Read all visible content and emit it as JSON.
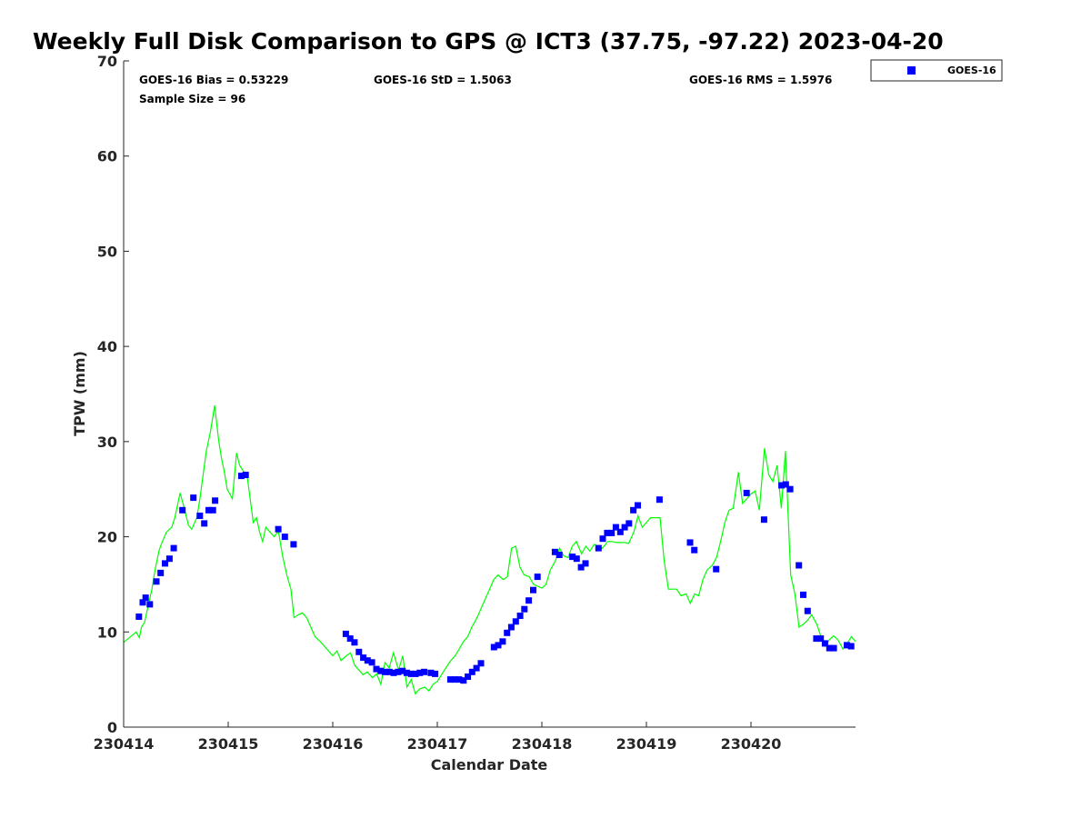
{
  "chart_data": {
    "type": "scatter",
    "title": "Weekly Full Disk Comparison to GPS @ ICT3 (37.75, -97.22) 2023-04-20",
    "xlabel": "Calendar Date",
    "ylabel": "TPW (mm)",
    "xlim": [
      0,
      7
    ],
    "ylim": [
      0,
      70
    ],
    "x_ticks": [
      0,
      1,
      2,
      3,
      4,
      5,
      6
    ],
    "x_tick_labels": [
      "230414",
      "230415",
      "230416",
      "230417",
      "230418",
      "230419",
      "230420"
    ],
    "y_ticks": [
      0,
      10,
      20,
      30,
      40,
      50,
      60,
      70
    ],
    "y_tick_labels": [
      "0",
      "10",
      "20",
      "30",
      "40",
      "50",
      "60",
      "70"
    ],
    "legend_position": "top-right (outside plot)",
    "grid": false,
    "stats": {
      "bias": "GOES-16 Bias = 0.53229",
      "std": "GOES-16 StD = 1.5063",
      "rms": "GOES-16 RMS = 1.5976",
      "sample": "Sample Size = 96"
    },
    "series": [
      {
        "name": "GOES-16",
        "kind": "markers",
        "marker": "square",
        "color": "#0000ff",
        "x": [
          0.146,
          0.183,
          0.21,
          0.25,
          0.313,
          0.354,
          0.396,
          0.438,
          0.479,
          0.563,
          0.667,
          0.729,
          0.771,
          0.813,
          0.854,
          0.875,
          1.125,
          1.167,
          1.479,
          1.542,
          1.625,
          2.125,
          2.167,
          2.208,
          2.25,
          2.292,
          2.333,
          2.375,
          2.417,
          2.458,
          2.5,
          2.542,
          2.583,
          2.625,
          2.667,
          2.708,
          2.75,
          2.792,
          2.833,
          2.875,
          2.938,
          2.979,
          3.125,
          3.167,
          3.208,
          3.25,
          3.292,
          3.333,
          3.375,
          3.417,
          3.542,
          3.583,
          3.625,
          3.667,
          3.708,
          3.75,
          3.792,
          3.833,
          3.875,
          3.917,
          3.958,
          4.125,
          4.167,
          4.292,
          4.333,
          4.375,
          4.417,
          4.542,
          4.583,
          4.625,
          4.667,
          4.708,
          4.75,
          4.792,
          4.833,
          4.875,
          4.917,
          5.125,
          5.417,
          5.458,
          5.667,
          5.958,
          6.125,
          6.292,
          6.333,
          6.375,
          6.458,
          6.5,
          6.542,
          6.625,
          6.667,
          6.708,
          6.75,
          6.792,
          6.917,
          6.958
        ],
        "y": [
          11.6,
          13.1,
          13.6,
          12.9,
          15.3,
          16.2,
          17.2,
          17.7,
          18.8,
          22.8,
          24.1,
          22.2,
          21.4,
          22.8,
          22.8,
          23.8,
          26.4,
          26.5,
          20.8,
          20.0,
          19.2,
          9.8,
          9.3,
          8.9,
          7.9,
          7.3,
          7.0,
          6.8,
          6.1,
          5.9,
          5.8,
          5.8,
          5.7,
          5.8,
          5.9,
          5.7,
          5.6,
          5.6,
          5.7,
          5.8,
          5.7,
          5.6,
          5.0,
          5.0,
          5.0,
          4.9,
          5.3,
          5.8,
          6.2,
          6.7,
          8.4,
          8.6,
          9.0,
          9.9,
          10.5,
          11.1,
          11.7,
          12.4,
          13.3,
          14.4,
          15.8,
          18.4,
          18.1,
          17.9,
          17.7,
          16.8,
          17.2,
          18.8,
          19.8,
          20.4,
          20.4,
          21.0,
          20.5,
          21.0,
          21.4,
          22.8,
          23.3,
          23.9,
          19.4,
          18.6,
          16.6,
          24.6,
          21.8,
          25.4,
          25.5,
          25.0,
          17.0,
          13.9,
          12.2,
          9.3,
          9.3,
          8.8,
          8.3,
          8.3,
          8.6,
          8.5
        ]
      },
      {
        "name": "",
        "kind": "line",
        "color": "#00ff00",
        "x": [
          0.0,
          0.12,
          0.15,
          0.17,
          0.2,
          0.24,
          0.27,
          0.3,
          0.34,
          0.37,
          0.41,
          0.46,
          0.49,
          0.54,
          0.58,
          0.62,
          0.65,
          0.7,
          0.73,
          0.79,
          0.83,
          0.87,
          0.91,
          0.94,
          0.96,
          0.99,
          1.04,
          1.08,
          1.11,
          1.15,
          1.18,
          1.24,
          1.27,
          1.3,
          1.33,
          1.36,
          1.4,
          1.44,
          1.48,
          1.52,
          1.56,
          1.6,
          1.63,
          1.67,
          1.71,
          1.75,
          1.79,
          1.83,
          1.88,
          1.92,
          2.0,
          2.04,
          2.08,
          2.13,
          2.17,
          2.21,
          2.25,
          2.29,
          2.33,
          2.38,
          2.42,
          2.46,
          2.5,
          2.54,
          2.58,
          2.63,
          2.67,
          2.71,
          2.75,
          2.79,
          2.83,
          2.88,
          2.92,
          2.96,
          3.0,
          3.04,
          3.08,
          3.13,
          3.17,
          3.21,
          3.25,
          3.29,
          3.33,
          3.38,
          3.42,
          3.46,
          3.5,
          3.54,
          3.58,
          3.63,
          3.67,
          3.71,
          3.75,
          3.79,
          3.83,
          3.88,
          3.92,
          3.96,
          4.0,
          4.04,
          4.08,
          4.13,
          4.17,
          4.21,
          4.25,
          4.29,
          4.33,
          4.38,
          4.42,
          4.46,
          4.5,
          4.54,
          4.58,
          4.63,
          4.67,
          4.71,
          4.75,
          4.79,
          4.83,
          4.88,
          4.92,
          4.96,
          5.0,
          5.04,
          5.08,
          5.13,
          5.17,
          5.21,
          5.25,
          5.29,
          5.33,
          5.38,
          5.42,
          5.46,
          5.5,
          5.54,
          5.58,
          5.63,
          5.67,
          5.71,
          5.75,
          5.79,
          5.83,
          5.88,
          5.92,
          5.96,
          6.0,
          6.04,
          6.08,
          6.13,
          6.17,
          6.21,
          6.25,
          6.29,
          6.33,
          6.38,
          6.42,
          6.46,
          6.5,
          6.54,
          6.58,
          6.63,
          6.67,
          6.71,
          6.75,
          6.79,
          6.83,
          6.88,
          6.92,
          6.96,
          7.0
        ],
        "y": [
          8.9,
          10.0,
          9.4,
          10.5,
          11.0,
          13.0,
          14.5,
          16.5,
          18.6,
          19.5,
          20.5,
          21.0,
          22.0,
          24.6,
          23.0,
          21.2,
          20.8,
          22.0,
          24.0,
          29.0,
          31.0,
          33.8,
          30.0,
          28.0,
          27.0,
          25.0,
          24.0,
          28.8,
          27.5,
          26.8,
          26.5,
          21.5,
          22.0,
          20.5,
          19.5,
          21.0,
          20.5,
          20.0,
          20.6,
          18.0,
          16.0,
          14.5,
          11.5,
          11.8,
          12.0,
          11.5,
          10.5,
          9.5,
          9.0,
          8.5,
          7.5,
          8.0,
          7.0,
          7.5,
          7.8,
          6.5,
          6.0,
          5.5,
          5.8,
          5.2,
          5.6,
          4.5,
          6.8,
          6.2,
          7.8,
          6.0,
          7.5,
          4.2,
          5.0,
          3.5,
          4.0,
          4.2,
          3.8,
          4.5,
          4.8,
          5.5,
          6.2,
          7.0,
          7.5,
          8.2,
          9.0,
          9.5,
          10.5,
          11.5,
          12.5,
          13.5,
          14.5,
          15.5,
          16.0,
          15.5,
          15.8,
          18.8,
          19.0,
          16.8,
          16.0,
          15.8,
          15.0,
          14.8,
          14.6,
          15.0,
          16.5,
          17.5,
          18.8,
          18.0,
          17.8,
          19.0,
          19.5,
          18.2,
          19.0,
          18.5,
          19.2,
          19.0,
          18.8,
          19.5,
          19.5,
          19.4,
          19.4,
          19.4,
          19.3,
          20.5,
          22.2,
          21.0,
          21.5,
          22.0,
          22.0,
          22.0,
          17.5,
          14.5,
          14.5,
          14.5,
          13.8,
          14.0,
          13.0,
          14.0,
          13.8,
          15.5,
          16.5,
          17.0,
          17.8,
          19.5,
          21.5,
          22.8,
          23.0,
          26.8,
          23.5,
          24.0,
          24.5,
          24.8,
          22.8,
          29.3,
          26.5,
          25.8,
          27.5,
          23.0,
          29.0,
          16.0,
          14.0,
          10.5,
          10.8,
          11.2,
          11.8,
          10.8,
          9.5,
          8.5,
          9.2,
          9.6,
          9.2,
          8.2,
          8.8,
          9.5,
          9.0
        ]
      }
    ]
  }
}
